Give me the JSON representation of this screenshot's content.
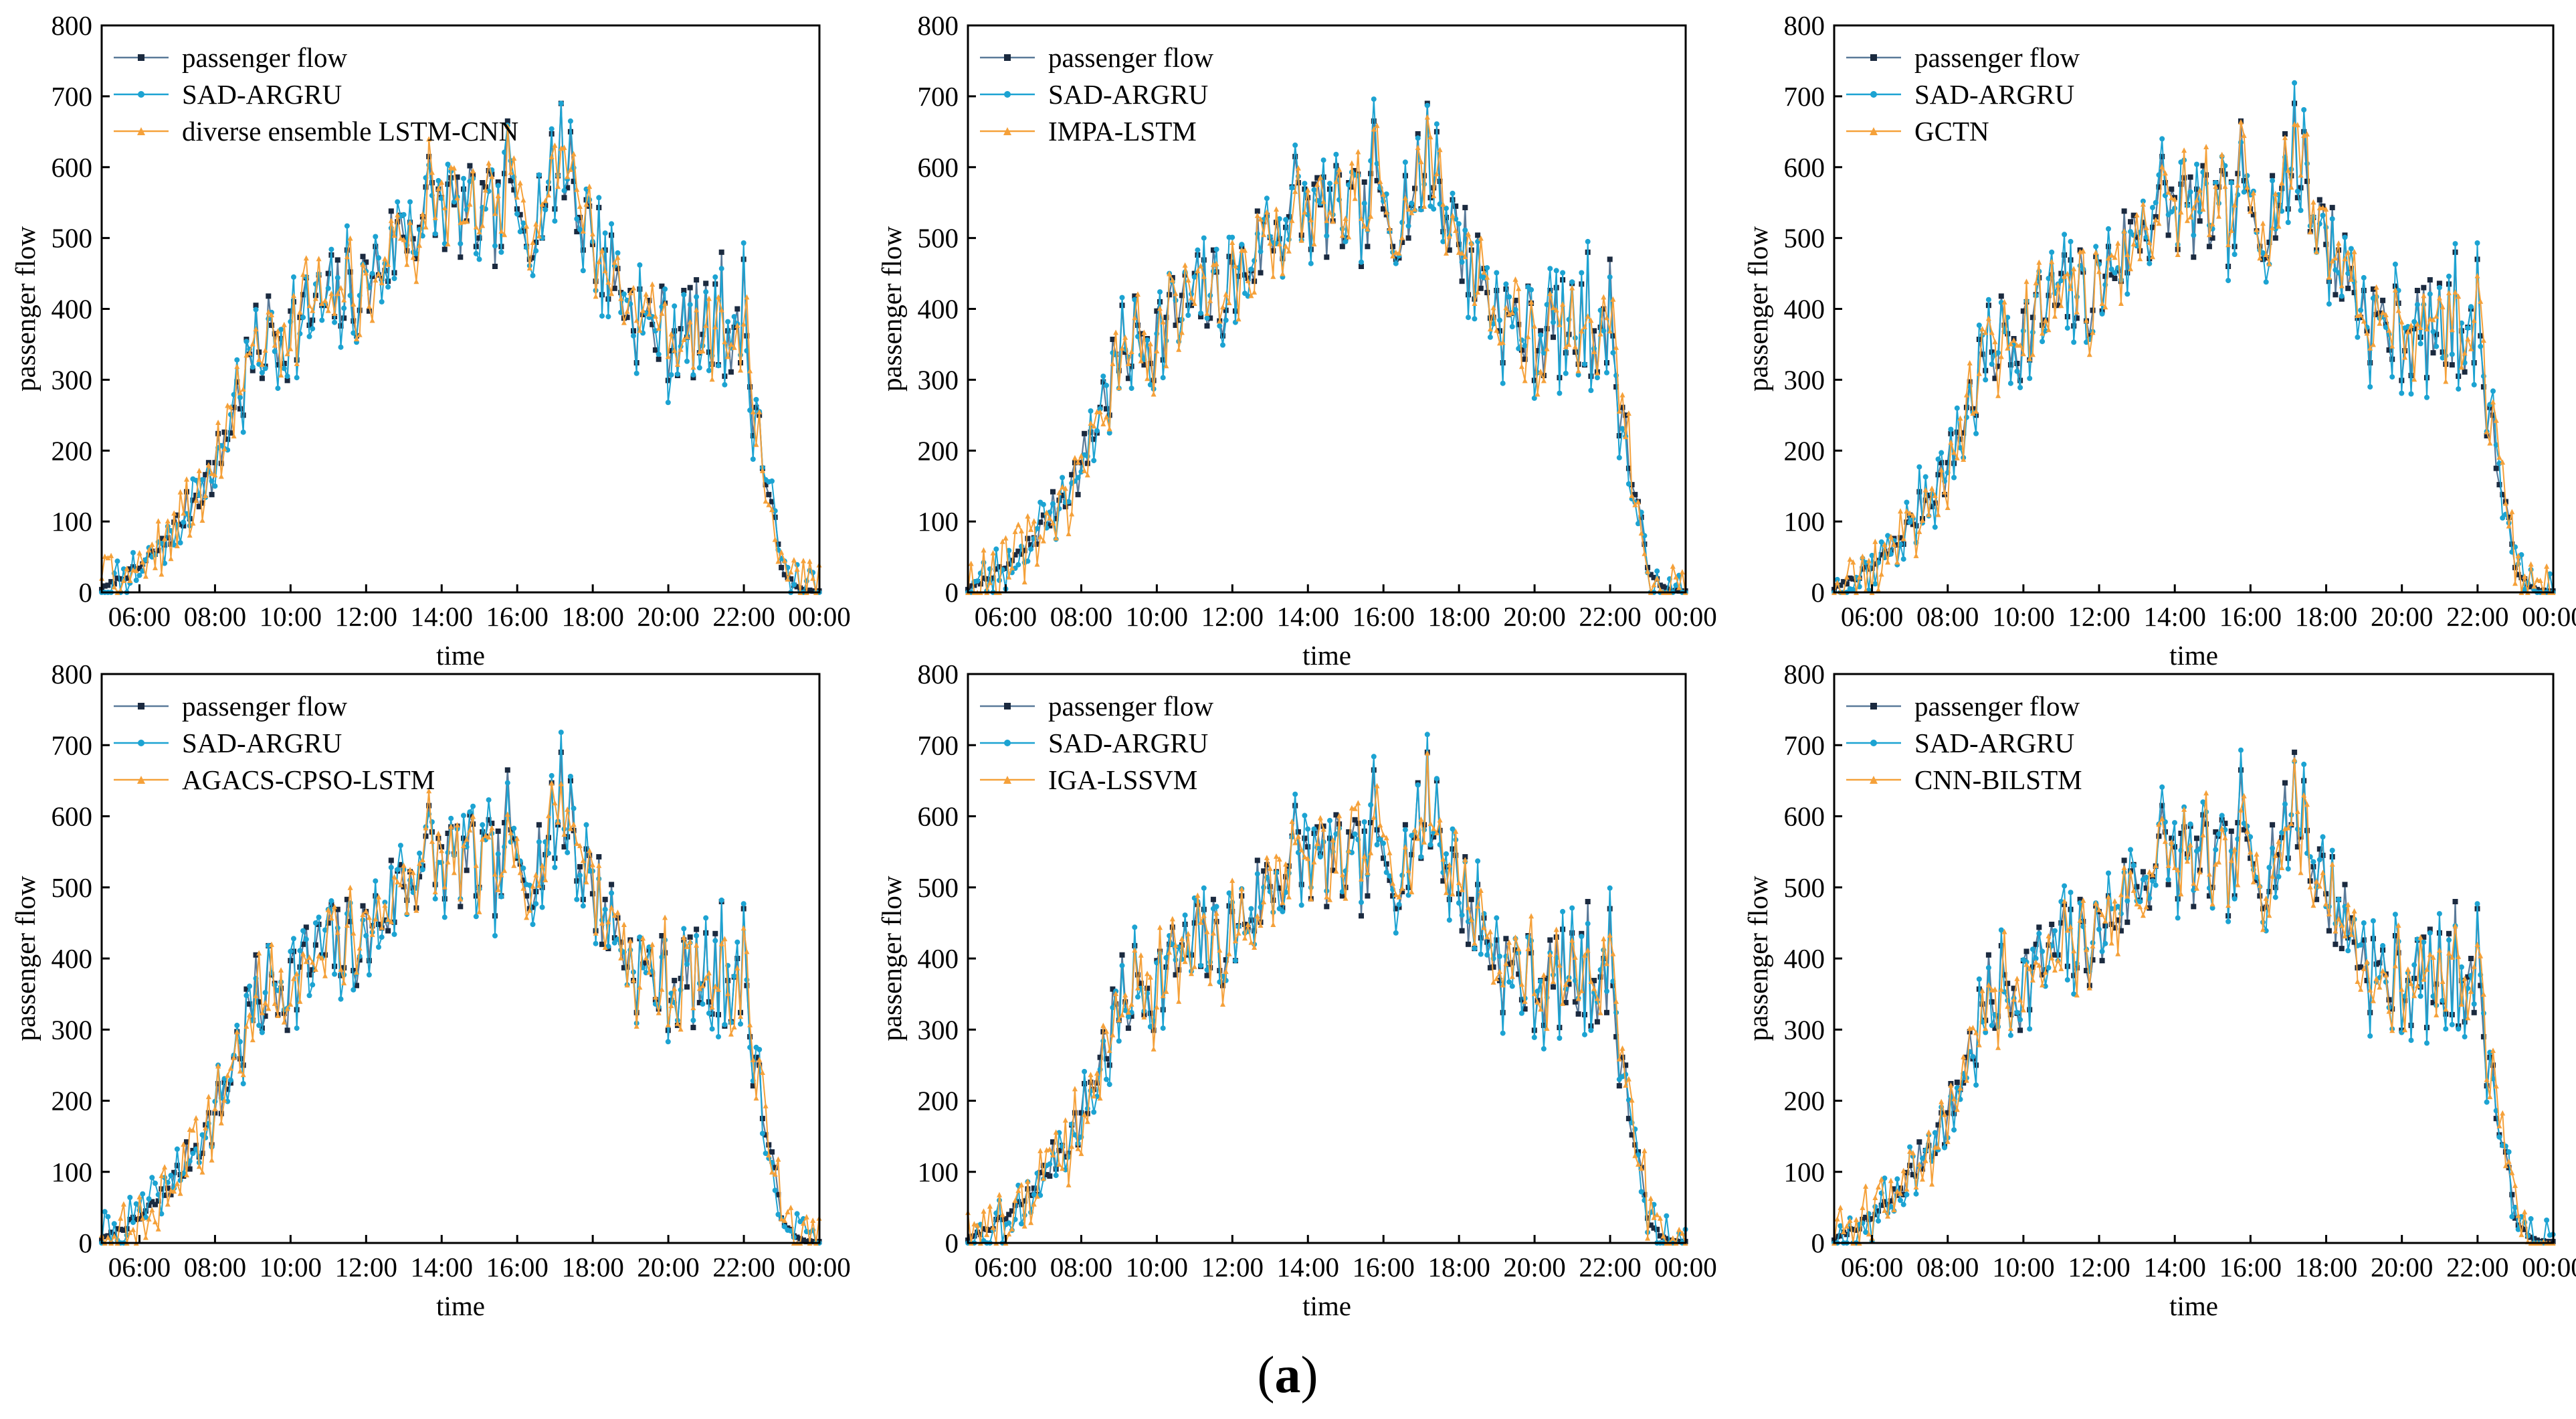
{
  "figure": {
    "caption_open": "(",
    "caption_letter": "a",
    "caption_close": ")"
  },
  "colors": {
    "actual": "#1b2a3f",
    "sad_argru": "#1ca3d2",
    "compare": "#f5a13a"
  },
  "chart_data": [
    {
      "type": "line",
      "title": "",
      "xlabel": "time",
      "ylabel": "passenger flow",
      "ylim": [
        0,
        800
      ],
      "yticks": [
        "0",
        "100",
        "200",
        "300",
        "400",
        "500",
        "600",
        "700",
        "800"
      ],
      "xticks": [
        "06:00",
        "08:00",
        "10:00",
        "12:00",
        "14:00",
        "16:00",
        "18:00",
        "20:00",
        "22:00",
        "00:00"
      ],
      "x_range_hours": [
        5.0,
        24.0
      ],
      "series": [
        {
          "name": "passenger flow"
        },
        {
          "name": "SAD-ARGRU"
        },
        {
          "name": "diverse ensemble LSTM-CNN"
        }
      ],
      "seed": 11
    },
    {
      "type": "line",
      "title": "",
      "xlabel": "time",
      "ylabel": "passenger flow",
      "ylim": [
        0,
        800
      ],
      "yticks": [
        "0",
        "100",
        "200",
        "300",
        "400",
        "500",
        "600",
        "700",
        "800"
      ],
      "xticks": [
        "06:00",
        "08:00",
        "10:00",
        "12:00",
        "14:00",
        "16:00",
        "18:00",
        "20:00",
        "22:00",
        "00:00"
      ],
      "x_range_hours": [
        5.0,
        24.0
      ],
      "series": [
        {
          "name": "passenger flow"
        },
        {
          "name": "SAD-ARGRU"
        },
        {
          "name": "IMPA-LSTM"
        }
      ],
      "seed": 23
    },
    {
      "type": "line",
      "title": "",
      "xlabel": "time",
      "ylabel": "passenger flow",
      "ylim": [
        0,
        800
      ],
      "yticks": [
        "0",
        "100",
        "200",
        "300",
        "400",
        "500",
        "600",
        "700",
        "800"
      ],
      "xticks": [
        "06:00",
        "08:00",
        "10:00",
        "12:00",
        "14:00",
        "16:00",
        "18:00",
        "20:00",
        "22:00",
        "00:00"
      ],
      "x_range_hours": [
        5.0,
        24.0
      ],
      "series": [
        {
          "name": "passenger flow"
        },
        {
          "name": "SAD-ARGRU"
        },
        {
          "name": "GCTN"
        }
      ],
      "seed": 37
    },
    {
      "type": "line",
      "title": "",
      "xlabel": "time",
      "ylabel": "passenger flow",
      "ylim": [
        0,
        800
      ],
      "yticks": [
        "0",
        "100",
        "200",
        "300",
        "400",
        "500",
        "600",
        "700",
        "800"
      ],
      "xticks": [
        "06:00",
        "08:00",
        "10:00",
        "12:00",
        "14:00",
        "16:00",
        "18:00",
        "20:00",
        "22:00",
        "00:00"
      ],
      "x_range_hours": [
        5.0,
        24.0
      ],
      "series": [
        {
          "name": "passenger flow"
        },
        {
          "name": "SAD-ARGRU"
        },
        {
          "name": "AGACS-CPSO-LSTM"
        }
      ],
      "seed": 41
    },
    {
      "type": "line",
      "title": "",
      "xlabel": "time",
      "ylabel": "passenger flow",
      "ylim": [
        0,
        800
      ],
      "yticks": [
        "0",
        "100",
        "200",
        "300",
        "400",
        "500",
        "600",
        "700",
        "800"
      ],
      "xticks": [
        "06:00",
        "08:00",
        "10:00",
        "12:00",
        "14:00",
        "16:00",
        "18:00",
        "20:00",
        "22:00",
        "00:00"
      ],
      "x_range_hours": [
        5.0,
        24.0
      ],
      "series": [
        {
          "name": "passenger flow"
        },
        {
          "name": "SAD-ARGRU"
        },
        {
          "name": "IGA-LSSVM"
        }
      ],
      "seed": 53
    },
    {
      "type": "line",
      "title": "",
      "xlabel": "time",
      "ylabel": "passenger flow",
      "ylim": [
        0,
        800
      ],
      "yticks": [
        "0",
        "100",
        "200",
        "300",
        "400",
        "500",
        "600",
        "700",
        "800"
      ],
      "xticks": [
        "06:00",
        "08:00",
        "10:00",
        "12:00",
        "14:00",
        "16:00",
        "18:00",
        "20:00",
        "22:00",
        "00:00"
      ],
      "x_range_hours": [
        5.0,
        24.0
      ],
      "series": [
        {
          "name": "passenger flow"
        },
        {
          "name": "SAD-ARGRU"
        },
        {
          "name": "CNN-BILSTM"
        }
      ],
      "seed": 67
    }
  ],
  "flow_profile": {
    "step_hours": 0.0833,
    "base_hours": [
      5.0,
      5.5,
      6.0,
      6.5,
      7.0,
      7.5,
      8.0,
      8.5,
      9.0,
      9.5,
      10.0,
      10.5,
      11.0,
      11.5,
      12.0,
      12.5,
      13.0,
      13.5,
      14.0,
      14.5,
      15.0,
      15.5,
      16.0,
      16.5,
      17.0,
      17.5,
      18.0,
      18.5,
      19.0,
      19.5,
      20.0,
      20.5,
      21.0,
      21.5,
      22.0,
      22.3,
      22.6,
      23.0,
      23.3,
      23.6,
      24.0
    ],
    "base_values": [
      5,
      20,
      35,
      60,
      95,
      140,
      175,
      260,
      330,
      365,
      370,
      395,
      410,
      420,
      430,
      475,
      510,
      535,
      545,
      535,
      530,
      525,
      520,
      545,
      585,
      555,
      500,
      455,
      400,
      375,
      365,
      370,
      375,
      370,
      325,
      270,
      150,
      40,
      10,
      3,
      2
    ]
  }
}
